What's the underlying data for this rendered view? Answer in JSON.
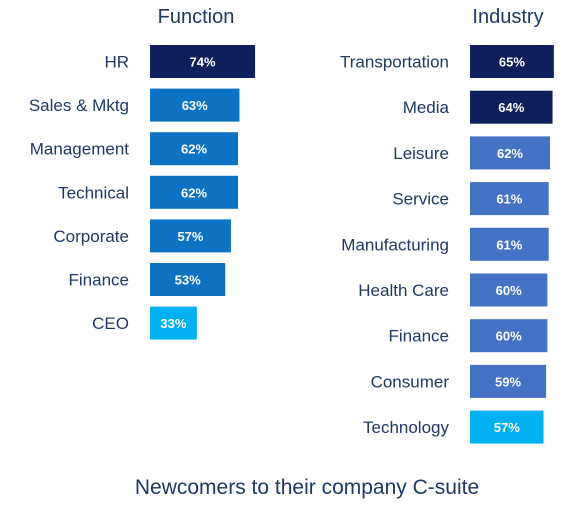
{
  "colors": {
    "text": "#1f3864",
    "dark_navy": "#0e1f5c",
    "blue": "#0b72c4",
    "mid_blue": "#4472c4",
    "light_blue": "#00b0f0"
  },
  "chart_data": [
    {
      "type": "bar",
      "orientation": "horizontal",
      "title": "Function",
      "categories": [
        "HR",
        "Sales & Mktg",
        "Management",
        "Technical",
        "Corporate",
        "Finance",
        "CEO"
      ],
      "values": [
        74,
        63,
        62,
        62,
        57,
        53,
        33
      ],
      "value_labels": [
        "74%",
        "63%",
        "62%",
        "62%",
        "57%",
        "53%",
        "33%"
      ],
      "colors": [
        "#0e1f5c",
        "#0b72c4",
        "#0b72c4",
        "#0b72c4",
        "#0b72c4",
        "#0b72c4",
        "#00b0f0"
      ]
    },
    {
      "type": "bar",
      "orientation": "horizontal",
      "title": "Industry",
      "categories": [
        "Transportation",
        "Media",
        "Leisure",
        "Service",
        "Manufacturing",
        "Health Care",
        "Finance",
        "Consumer",
        "Technology"
      ],
      "values": [
        65,
        64,
        62,
        61,
        61,
        60,
        60,
        59,
        57
      ],
      "value_labels": [
        "65%",
        "64%",
        "62%",
        "61%",
        "61%",
        "60%",
        "60%",
        "59%",
        "57%"
      ],
      "colors": [
        "#0e1f5c",
        "#0e1f5c",
        "#4472c4",
        "#4472c4",
        "#4472c4",
        "#4472c4",
        "#4472c4",
        "#4472c4",
        "#00b0f0"
      ]
    }
  ],
  "caption": "Newcomers to their company C-suite"
}
